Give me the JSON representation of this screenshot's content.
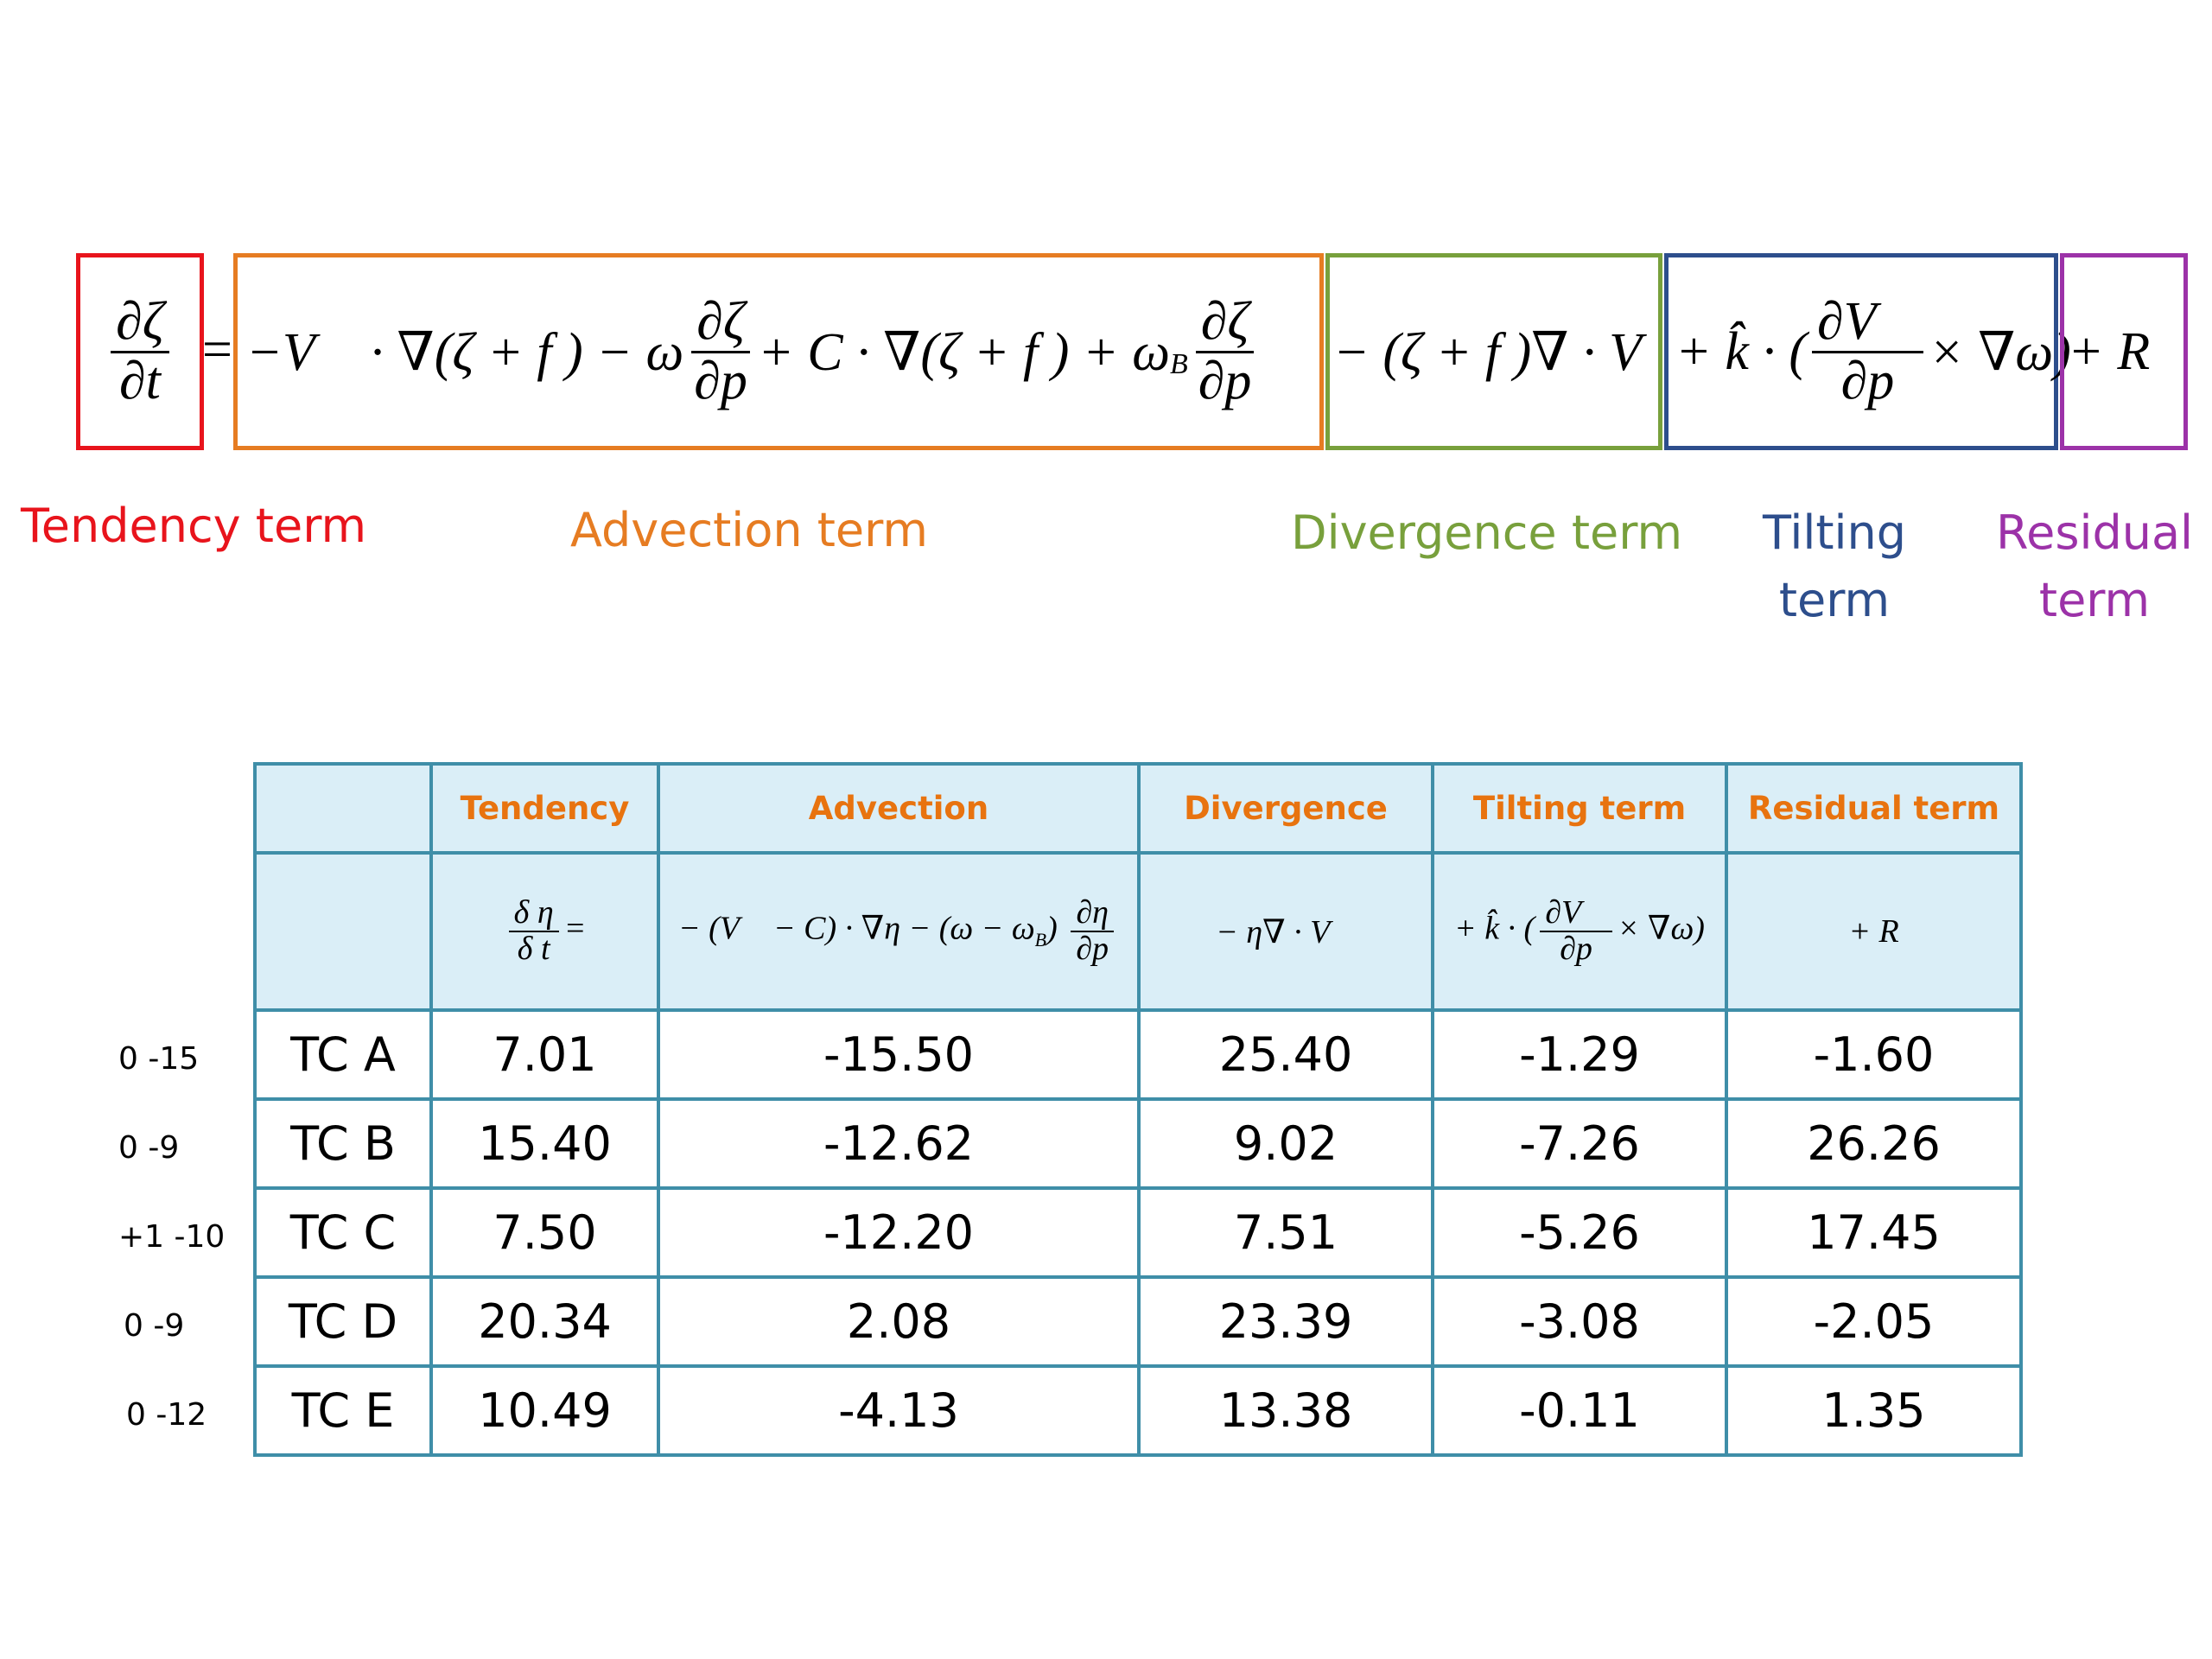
{
  "colors": {
    "tendency": "#e8141c",
    "advection": "#e67c22",
    "divergence": "#78a03c",
    "tilting": "#2d4e8c",
    "residual": "#9c32a8",
    "table_border": "#3f8ea8",
    "table_header_fill": "#daeef7",
    "header_text": "#e8730f"
  },
  "equation": {
    "tendency": {
      "num": "∂ζ",
      "den": "∂t"
    },
    "equals": "=",
    "advection": {
      "part1": "−V⃗ · ∇(ζ + f ) − ω",
      "frac1_num": "∂ζ",
      "frac1_den": "∂p",
      "part2": "+ C · ∇(ζ + f ) + ω",
      "subscript": "B",
      "frac2_num": "∂ζ",
      "frac2_den": "∂p"
    },
    "divergence": "− (ζ + f )∇ · V⃗",
    "tilting": {
      "part1": "+ k̂ · (",
      "frac_num": "∂V⃗",
      "frac_den": "∂p",
      "part2": "× ∇ω)"
    },
    "residual": "+ R"
  },
  "term_labels": {
    "tendency": "Tendency term",
    "advection": "Advection term",
    "divergence": "Divergence term",
    "tilting_line1": "Tilting",
    "tilting_line2": "term",
    "residual_line1": "Residual",
    "residual_line2": "term"
  },
  "table": {
    "headers": [
      "",
      "Tendency",
      "Advection",
      "Divergence",
      "Tilting term",
      "Residual term"
    ],
    "formulas": {
      "tendency": {
        "num": "δ η",
        "den": "δ t",
        "suffix": "="
      },
      "advection": {
        "prefix": "− (V⃗ − C) · ∇η − (ω − ω",
        "subscript": "B",
        "mid": ")",
        "num": "∂η",
        "den": "∂p"
      },
      "divergence": "− η∇ · V⃗",
      "tilting": {
        "prefix": "+ k̂ · (",
        "num": "∂V⃗",
        "den": "∂p",
        "suffix": "× ∇ω)"
      },
      "residual": "+ R"
    },
    "rows": [
      {
        "range": "0 -15",
        "name": "TC A",
        "tendency": "7.01",
        "advection": "-15.50",
        "divergence": "25.40",
        "tilting": "-1.29",
        "residual": "-1.60"
      },
      {
        "range": "0 -9",
        "name": "TC B",
        "tendency": "15.40",
        "advection": "-12.62",
        "divergence": "9.02",
        "tilting": "-7.26",
        "residual": "26.26"
      },
      {
        "range": "+1 -10",
        "name": "TC C",
        "tendency": "7.50",
        "advection": "-12.20",
        "divergence": "7.51",
        "tilting": "-5.26",
        "residual": "17.45"
      },
      {
        "range": "0 -9",
        "name": "TC D",
        "tendency": "20.34",
        "advection": "2.08",
        "divergence": "23.39",
        "tilting": "-3.08",
        "residual": "-2.05"
      },
      {
        "range": "0 -12",
        "name": "TC E",
        "tendency": "10.49",
        "advection": "-4.13",
        "divergence": "13.38",
        "tilting": "-0.11",
        "residual": "1.35"
      }
    ]
  }
}
